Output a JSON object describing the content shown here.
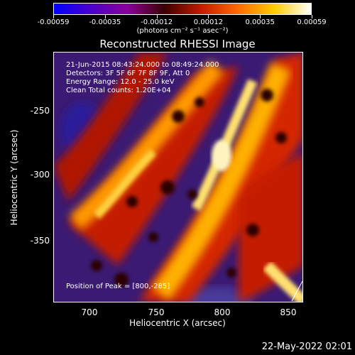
{
  "colorbar": {
    "tick_labels": [
      "-0.00059",
      "-0.00035",
      "-0.00012",
      "0.00012",
      "0.00035",
      "0.00059"
    ],
    "units": "(photons cm⁻² s⁻¹ asec⁻²)",
    "colors": [
      "#0000ff",
      "#4b00cc",
      "#8a0099",
      "#3a0000",
      "#c41a00",
      "#ff6a00",
      "#ffcc00",
      "#ffffff"
    ]
  },
  "title": "Reconstructed RHESSI Image",
  "info_lines": [
    "21-Jun-2015 08:43:24.000 to 08:49:24.000",
    "Detectors: 3F 5F 6F 7F 8F 9F, Att 0",
    "Energy Range: 12.0 - 25.0 keV",
    "Clean     Total counts: 1.20E+04"
  ],
  "peak_text": "Position of Peak = [800,-285]",
  "x_axis": {
    "label": "Heliocentric X (arcsec)",
    "tick_labels": [
      "700",
      "750",
      "800",
      "850"
    ]
  },
  "y_axis": {
    "label": "Heliocentric Y (arcsec)",
    "tick_labels": [
      "-250",
      "-300",
      "-350"
    ]
  },
  "timestamp": "22-May-2022 02:01"
}
